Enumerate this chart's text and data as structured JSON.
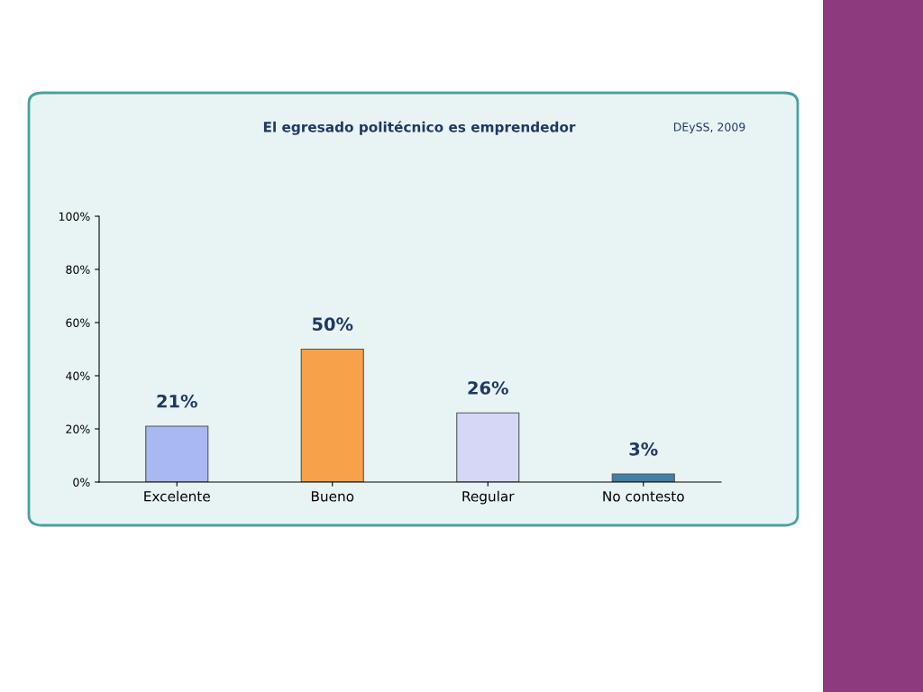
{
  "chart_data": {
    "type": "bar",
    "title": "El egresado politécnico es emprendedor",
    "annotations": [
      "DEySS, 2009"
    ],
    "categories": [
      "Excelente",
      "Bueno",
      "Regular",
      "No contesto"
    ],
    "values": [
      21,
      50,
      26,
      3
    ],
    "value_labels": [
      "21%",
      "50%",
      "26%",
      "3%"
    ],
    "colors": [
      "#a9b8f0",
      "#f7a24a",
      "#d6d6f7",
      "#3f7fa8"
    ],
    "ylim": [
      0,
      100
    ],
    "yticks": [
      {
        "value": 0,
        "label": "0%"
      },
      {
        "value": 20,
        "label": "20%"
      },
      {
        "value": 40,
        "label": "40%"
      },
      {
        "value": 60,
        "label": "60%"
      },
      {
        "value": 80,
        "label": "80%"
      },
      {
        "value": 100,
        "label": "100%"
      }
    ],
    "grid": false,
    "legend": false
  }
}
